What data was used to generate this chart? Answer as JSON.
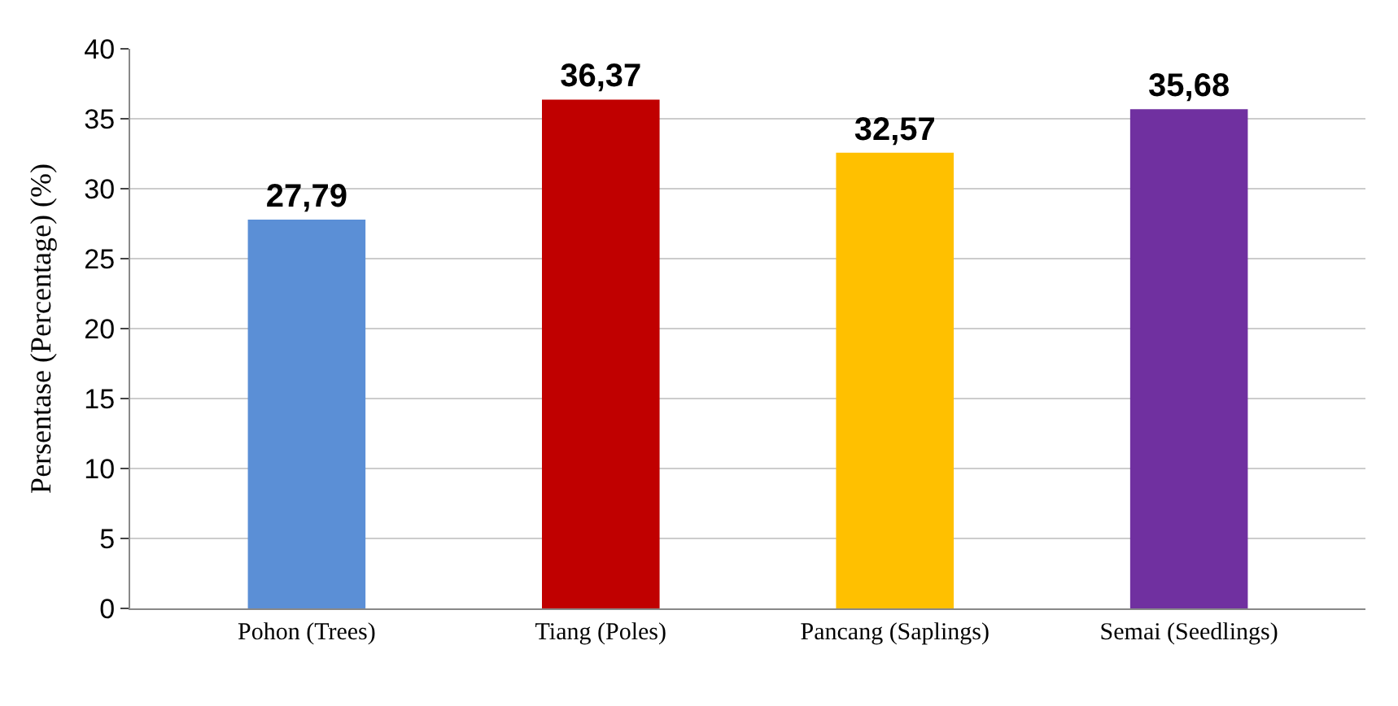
{
  "chart_data": {
    "type": "bar",
    "ylabel": "Persentase (Percentage) (%)",
    "categories": [
      "Pohon (Trees)",
      "Tiang (Poles)",
      "Pancang (Saplings)",
      "Semai (Seedlings)"
    ],
    "values": [
      27.79,
      36.37,
      32.57,
      35.68
    ],
    "value_labels": [
      "27,79",
      "36,37",
      "32,57",
      "35,68"
    ],
    "colors": [
      "#5b8fd6",
      "#c00000",
      "#ffc000",
      "#7030a0"
    ],
    "ylim": [
      0,
      40
    ],
    "yticks": [
      0,
      5,
      10,
      15,
      20,
      25,
      30,
      35,
      40
    ],
    "grid": "y"
  }
}
